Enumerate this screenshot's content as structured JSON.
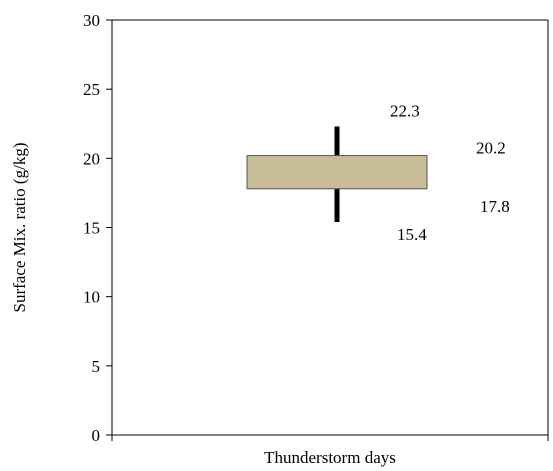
{
  "chart_data": {
    "type": "box",
    "title": "",
    "xlabel": "Thunderstorm days",
    "ylabel": "Surface Mix. ratio (g/kg)",
    "ylim": [
      0,
      30
    ],
    "yticks": [
      0,
      5,
      10,
      15,
      20,
      25,
      30
    ],
    "ytick_labels": [
      "0",
      "5",
      "10",
      "15",
      "20",
      "25",
      "30"
    ],
    "grid": false,
    "legend": "none",
    "box": {
      "whisker_low": 15.4,
      "q1": 17.8,
      "q3": 20.2,
      "whisker_high": 22.3,
      "label_low": "15.4",
      "label_q1": "17.8",
      "label_q3": "20.2",
      "label_high": "22.3"
    },
    "colors": {
      "box_fill": "#c8bd96",
      "box_edge": "#555555",
      "whisker": "#000000",
      "axis": "#000000"
    }
  }
}
